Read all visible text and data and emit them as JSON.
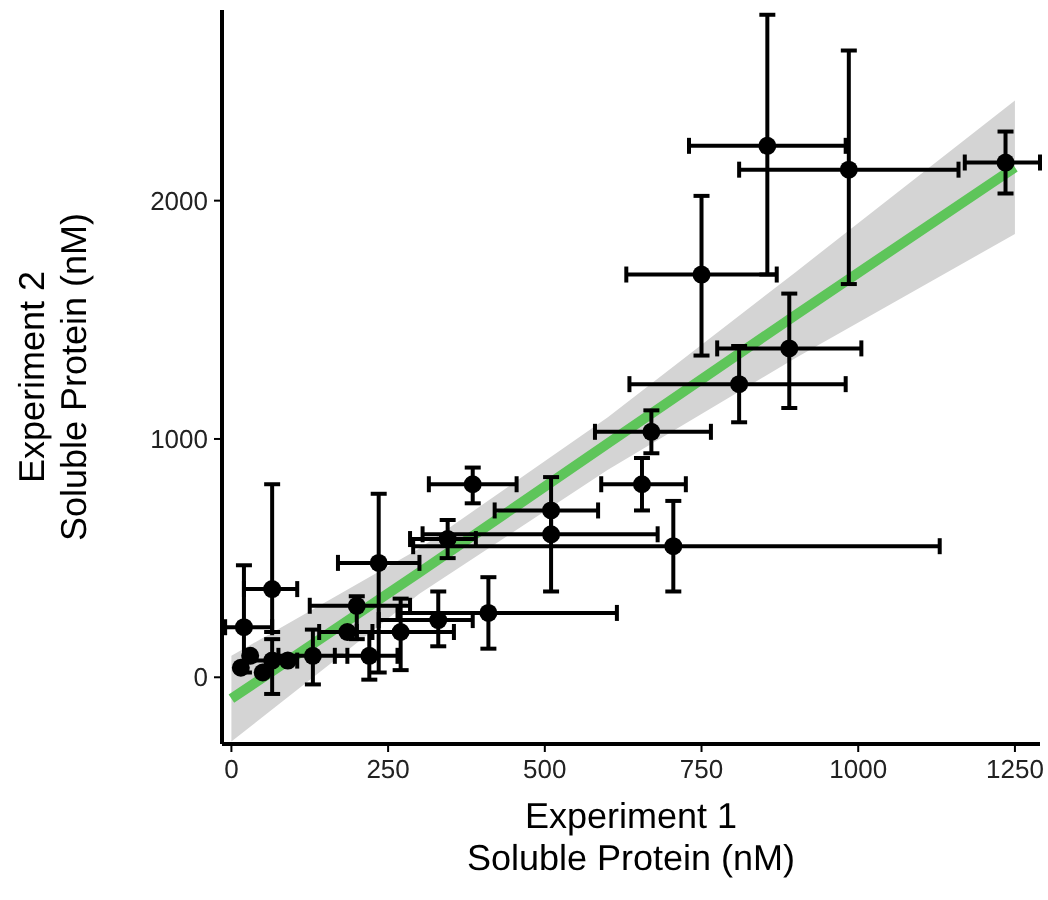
{
  "chart_data": {
    "type": "scatter",
    "xlabel": "Experiment 1\nSoluble Protein (nM)",
    "ylabel": "Experiment 2\nSoluble Protein (nM)",
    "xlim": [
      -15,
      1290
    ],
    "ylim": [
      -280,
      2800
    ],
    "xticks": [
      0,
      250,
      500,
      750,
      1000,
      1250
    ],
    "yticks": [
      0,
      1000,
      2000
    ],
    "grid": false,
    "marker": "circle",
    "series": [
      {
        "type": "line",
        "marker": "none",
        "color": "#5ec55a",
        "x": [
          0,
          300,
          600,
          900,
          1250
        ],
        "values": [
          -90,
          440,
          980,
          1520,
          2140
        ],
        "lower": [
          -270,
          350,
          870,
          1340,
          1860
        ],
        "upper": [
          90,
          540,
          1090,
          1700,
          2420
        ]
      },
      {
        "color": "#000000",
        "x": [
          1235,
          855,
          985,
          750,
          890,
          810,
          670,
          655,
          705,
          510,
          510,
          385,
          345,
          235,
          410,
          330,
          270,
          200,
          220,
          185,
          130,
          65,
          20,
          65,
          30,
          50,
          15,
          90
        ],
        "values": [
          2160,
          2230,
          2130,
          1690,
          1380,
          1230,
          1030,
          810,
          550,
          600,
          700,
          810,
          580,
          480,
          270,
          240,
          190,
          300,
          90,
          190,
          90,
          370,
          210,
          70,
          90,
          20,
          40,
          70
        ],
        "errors": [
          [
            2030,
            2290
          ],
          [
            1690,
            2780
          ],
          [
            1650,
            2630
          ],
          [
            1350,
            2020
          ],
          [
            1130,
            1610
          ],
          [
            1070,
            1390
          ],
          [
            940,
            1120
          ],
          [
            700,
            920
          ],
          [
            360,
            740
          ],
          [
            360,
            700
          ],
          [
            590,
            840
          ],
          [
            730,
            880
          ],
          [
            500,
            660
          ],
          [
            20,
            770
          ],
          [
            120,
            420
          ],
          [
            130,
            360
          ],
          [
            30,
            330
          ],
          [
            160,
            340
          ],
          [
            -10,
            190
          ],
          null,
          [
            -30,
            200
          ],
          [
            190,
            810
          ],
          [
            20,
            470
          ],
          [
            -70,
            160
          ],
          null,
          null,
          null,
          null
        ],
        "xerrors": [
          [
            1170,
            1290
          ],
          [
            730,
            980
          ],
          [
            810,
            1160
          ],
          [
            630,
            870
          ],
          [
            775,
            1005
          ],
          [
            635,
            980
          ],
          [
            580,
            765
          ],
          [
            590,
            725
          ],
          [
            290,
            1130
          ],
          [
            305,
            680
          ],
          [
            420,
            585
          ],
          [
            315,
            455
          ],
          [
            285,
            390
          ],
          [
            170,
            300
          ],
          [
            265,
            615
          ],
          [
            235,
            385
          ],
          [
            200,
            355
          ],
          [
            125,
            285
          ],
          [
            165,
            265
          ],
          [
            140,
            225
          ],
          [
            75,
            185
          ],
          [
            20,
            105
          ],
          [
            -10,
            65
          ],
          [
            20,
            105
          ],
          null,
          null,
          null,
          null
        ]
      }
    ]
  }
}
